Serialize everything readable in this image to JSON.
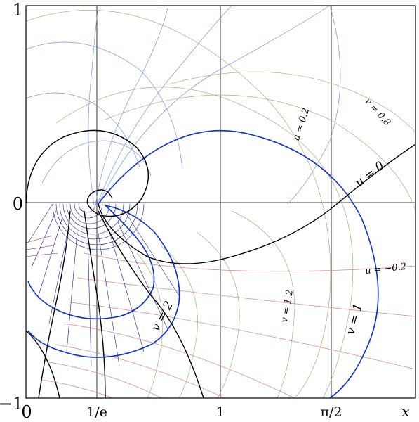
{
  "tick_labels": {
    "y_top": "1",
    "y_mid": "0",
    "y_bot": "−1",
    "x_0": "0",
    "x_inv_e": "1/e",
    "x_1": "1",
    "x_pi_2": "π/2",
    "x_axis": "x"
  },
  "curve_labels": {
    "u_0": "u = 0",
    "u_0_2": "u = 0.2",
    "u_neg_0_2": "u = −0.2",
    "v_0_8": "v = 0.8",
    "v_1_2": "v = 1.2",
    "v_1": "v = 1",
    "v_2": "v = 2"
  },
  "colors": {
    "u_negative_grid": "#d98080",
    "v_grid": "#a9ad7c",
    "u_positive_grid": "#7b94e2",
    "u_0_curve": "#000000",
    "v_1_curve": "#0a2fd6",
    "dense_region": "#1a1aa0",
    "frame": "#000000"
  }
}
